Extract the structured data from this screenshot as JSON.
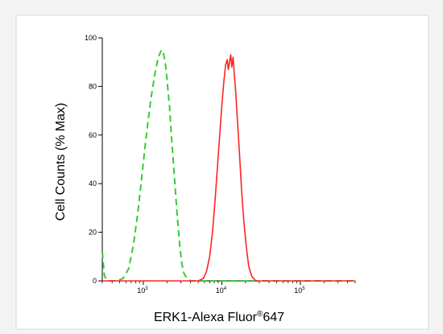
{
  "chart_data": {
    "type": "line",
    "title": "",
    "xlabel": {
      "main": "ERK1-Alexa Fluor",
      "sup": "®",
      "tail": "647"
    },
    "ylabel": "Cell Counts (% Max)",
    "xscale": "log",
    "xlim": [
      300,
      500000
    ],
    "ylim": [
      0,
      100
    ],
    "y_ticks": [
      0,
      20,
      40,
      60,
      80,
      100
    ],
    "x_ticks": [
      {
        "value": 1000,
        "base": "10",
        "exp": "3"
      },
      {
        "value": 10000,
        "base": "10",
        "exp": "4"
      },
      {
        "value": 100000,
        "base": "10",
        "exp": "5"
      }
    ],
    "grid": false,
    "legend": "none",
    "series": [
      {
        "color": "#33cc33",
        "style": "dashed",
        "points": [
          [
            300,
            12
          ],
          [
            320,
            2
          ],
          [
            350,
            0
          ],
          [
            450,
            0
          ],
          [
            550,
            1
          ],
          [
            650,
            5
          ],
          [
            750,
            15
          ],
          [
            850,
            28
          ],
          [
            950,
            42
          ],
          [
            1050,
            55
          ],
          [
            1150,
            66
          ],
          [
            1250,
            75
          ],
          [
            1400,
            85
          ],
          [
            1550,
            92
          ],
          [
            1700,
            95
          ],
          [
            1800,
            94
          ],
          [
            1900,
            90
          ],
          [
            2000,
            83
          ],
          [
            2150,
            72
          ],
          [
            2300,
            58
          ],
          [
            2500,
            42
          ],
          [
            2700,
            27
          ],
          [
            2900,
            15
          ],
          [
            3100,
            7
          ],
          [
            3300,
            3
          ],
          [
            3600,
            1
          ],
          [
            4000,
            0
          ],
          [
            6000,
            0
          ],
          [
            20000,
            0
          ],
          [
            300000,
            0
          ],
          [
            500000,
            0
          ]
        ]
      },
      {
        "color": "#ff2222",
        "style": "solid",
        "points": [
          [
            300,
            0
          ],
          [
            4000,
            0
          ],
          [
            5000,
            0
          ],
          [
            5800,
            1
          ],
          [
            6400,
            4
          ],
          [
            7000,
            10
          ],
          [
            7600,
            20
          ],
          [
            8200,
            33
          ],
          [
            8800,
            47
          ],
          [
            9400,
            60
          ],
          [
            10000,
            72
          ],
          [
            10600,
            82
          ],
          [
            11200,
            89
          ],
          [
            11700,
            91
          ],
          [
            12100,
            87
          ],
          [
            12500,
            90
          ],
          [
            13000,
            93
          ],
          [
            13400,
            88
          ],
          [
            13900,
            92
          ],
          [
            14400,
            85
          ],
          [
            15000,
            78
          ],
          [
            15800,
            66
          ],
          [
            16800,
            52
          ],
          [
            17800,
            38
          ],
          [
            19000,
            25
          ],
          [
            20500,
            14
          ],
          [
            22000,
            6
          ],
          [
            24000,
            2
          ],
          [
            27000,
            0
          ],
          [
            50000,
            0
          ],
          [
            500000,
            0
          ]
        ]
      }
    ]
  }
}
